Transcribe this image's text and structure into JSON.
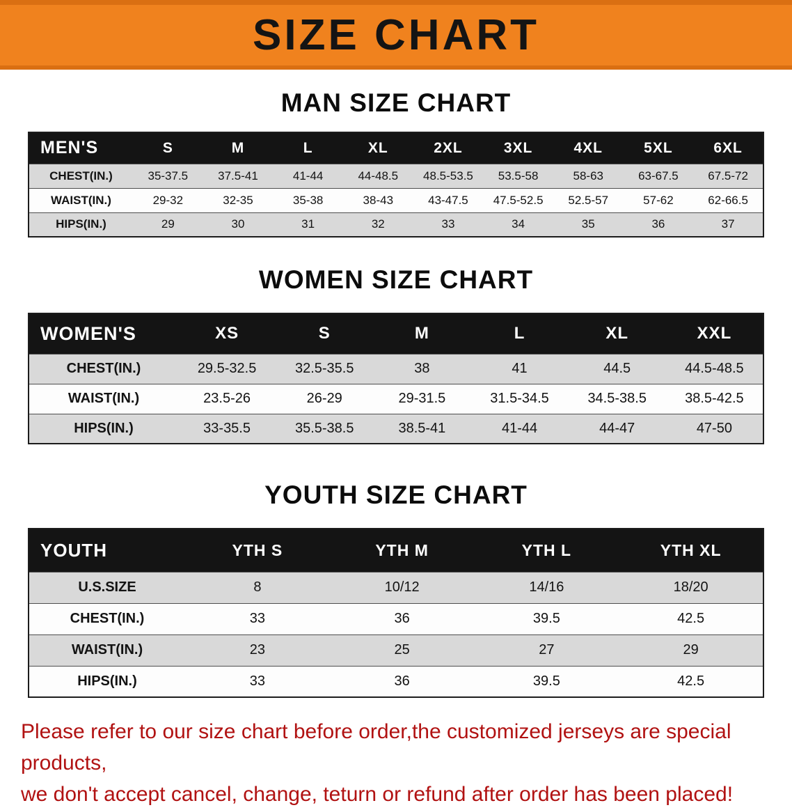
{
  "banner": {
    "title": "SIZE CHART"
  },
  "sections": [
    {
      "heading": "MAN SIZE CHART",
      "table": {
        "corner": "MEN'S",
        "sizes": [
          "S",
          "M",
          "L",
          "XL",
          "2XL",
          "3XL",
          "4XL",
          "5XL",
          "6XL"
        ],
        "rows": [
          {
            "label": "CHEST(IN.)",
            "values": [
              "35-37.5",
              "37.5-41",
              "41-44",
              "44-48.5",
              "48.5-53.5",
              "53.5-58",
              "58-63",
              "63-67.5",
              "67.5-72"
            ]
          },
          {
            "label": "WAIST(IN.)",
            "values": [
              "29-32",
              "32-35",
              "35-38",
              "38-43",
              "43-47.5",
              "47.5-52.5",
              "52.5-57",
              "57-62",
              "62-66.5"
            ]
          },
          {
            "label": "HIPS(IN.)",
            "values": [
              "29",
              "30",
              "31",
              "32",
              "33",
              "34",
              "35",
              "36",
              "37"
            ]
          }
        ]
      }
    },
    {
      "heading": "WOMEN SIZE CHART",
      "table": {
        "corner": "WOMEN'S",
        "sizes": [
          "XS",
          "S",
          "M",
          "L",
          "XL",
          "XXL"
        ],
        "rows": [
          {
            "label": "CHEST(IN.)",
            "values": [
              "29.5-32.5",
              "32.5-35.5",
              "38",
              "41",
              "44.5",
              "44.5-48.5"
            ]
          },
          {
            "label": "WAIST(IN.)",
            "values": [
              "23.5-26",
              "26-29",
              "29-31.5",
              "31.5-34.5",
              "34.5-38.5",
              "38.5-42.5"
            ]
          },
          {
            "label": "HIPS(IN.)",
            "values": [
              "33-35.5",
              "35.5-38.5",
              "38.5-41",
              "41-44",
              "44-47",
              "47-50"
            ]
          }
        ]
      }
    },
    {
      "heading": "YOUTH SIZE CHART",
      "table": {
        "corner": "YOUTH",
        "sizes": [
          "YTH S",
          "YTH M",
          "YTH L",
          "YTH XL"
        ],
        "rows": [
          {
            "label": "U.S.SIZE",
            "values": [
              "8",
              "10/12",
              "14/16",
              "18/20"
            ]
          },
          {
            "label": "CHEST(IN.)",
            "values": [
              "33",
              "36",
              "39.5",
              "42.5"
            ]
          },
          {
            "label": "WAIST(IN.)",
            "values": [
              "23",
              "25",
              "27",
              "29"
            ]
          },
          {
            "label": "HIPS(IN.)",
            "values": [
              "33",
              "36",
              "39.5",
              "42.5"
            ]
          }
        ]
      }
    }
  ],
  "disclaimer": {
    "line1": "Please refer to our size chart before order,the customized jerseys are special products,",
    "line2": "we don't accept cancel, change, teturn or refund after order has been placed!"
  },
  "colors": {
    "banner_bg": "#F0821E",
    "banner_edge": "#DA6F12",
    "table_header_bg": "#141414",
    "row_shade": "#D9D9D9",
    "disclaimer_red": "#B11212"
  }
}
